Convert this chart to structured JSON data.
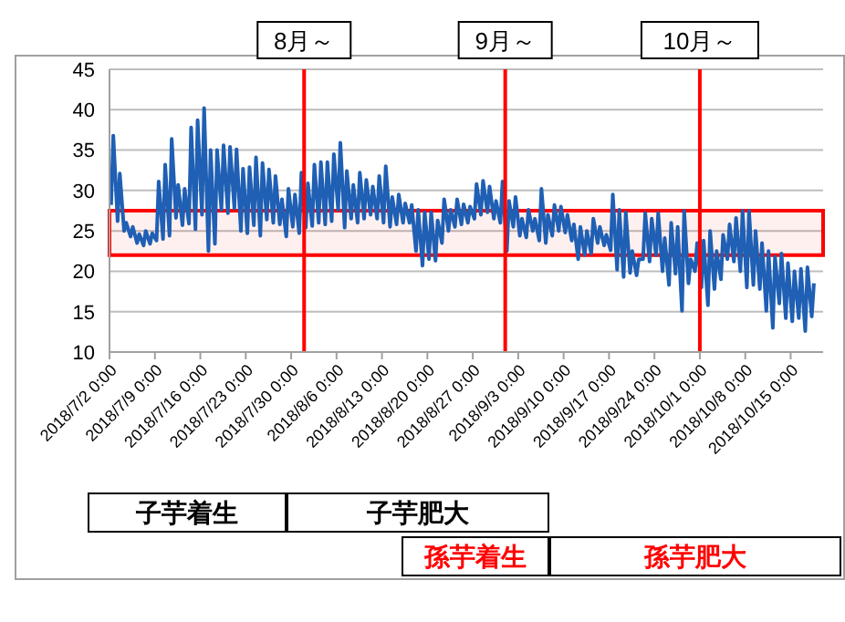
{
  "chart_data": {
    "type": "line",
    "x": [
      "2018-07-02T06:00",
      "2018-07-02T14:00",
      "2018-07-03T06:00",
      "2018-07-03T14:00",
      "2018-07-04T06:00",
      "2018-07-04T14:00",
      "2018-07-05T06:00",
      "2018-07-05T14:00",
      "2018-07-06T06:00",
      "2018-07-06T14:00",
      "2018-07-07T06:00",
      "2018-07-07T14:00",
      "2018-07-08T06:00",
      "2018-07-08T14:00",
      "2018-07-09T06:00",
      "2018-07-09T14:00",
      "2018-07-10T06:00",
      "2018-07-10T14:00",
      "2018-07-11T06:00",
      "2018-07-11T14:00",
      "2018-07-12T06:00",
      "2018-07-12T14:00",
      "2018-07-13T06:00",
      "2018-07-13T14:00",
      "2018-07-14T06:00",
      "2018-07-14T14:00",
      "2018-07-15T06:00",
      "2018-07-15T14:00",
      "2018-07-16T06:00",
      "2018-07-16T14:00",
      "2018-07-17T06:00",
      "2018-07-17T14:00",
      "2018-07-18T06:00",
      "2018-07-18T14:00",
      "2018-07-19T06:00",
      "2018-07-19T14:00",
      "2018-07-20T06:00",
      "2018-07-20T14:00",
      "2018-07-21T06:00",
      "2018-07-21T14:00",
      "2018-07-22T06:00",
      "2018-07-22T14:00",
      "2018-07-23T06:00",
      "2018-07-23T14:00",
      "2018-07-24T06:00",
      "2018-07-24T14:00",
      "2018-07-25T06:00",
      "2018-07-25T14:00",
      "2018-07-26T06:00",
      "2018-07-26T14:00",
      "2018-07-27T06:00",
      "2018-07-27T14:00",
      "2018-07-28T06:00",
      "2018-07-28T14:00",
      "2018-07-29T06:00",
      "2018-07-29T14:00",
      "2018-07-30T06:00",
      "2018-07-30T14:00",
      "2018-07-31T06:00",
      "2018-07-31T14:00",
      "2018-08-01T06:00",
      "2018-08-01T14:00",
      "2018-08-02T06:00",
      "2018-08-02T14:00",
      "2018-08-03T06:00",
      "2018-08-03T14:00",
      "2018-08-04T06:00",
      "2018-08-04T14:00",
      "2018-08-05T06:00",
      "2018-08-05T14:00",
      "2018-08-06T06:00",
      "2018-08-06T14:00",
      "2018-08-07T06:00",
      "2018-08-07T14:00",
      "2018-08-08T06:00",
      "2018-08-08T14:00",
      "2018-08-09T06:00",
      "2018-08-09T14:00",
      "2018-08-10T06:00",
      "2018-08-10T14:00",
      "2018-08-11T06:00",
      "2018-08-11T14:00",
      "2018-08-12T06:00",
      "2018-08-12T14:00",
      "2018-08-13T06:00",
      "2018-08-13T14:00",
      "2018-08-14T06:00",
      "2018-08-14T14:00",
      "2018-08-15T06:00",
      "2018-08-15T14:00",
      "2018-08-16T06:00",
      "2018-08-16T14:00",
      "2018-08-17T06:00",
      "2018-08-17T14:00",
      "2018-08-18T06:00",
      "2018-08-18T14:00",
      "2018-08-19T06:00",
      "2018-08-19T14:00",
      "2018-08-20T06:00",
      "2018-08-20T14:00",
      "2018-08-21T06:00",
      "2018-08-21T14:00",
      "2018-08-22T06:00",
      "2018-08-22T14:00",
      "2018-08-23T06:00",
      "2018-08-23T14:00",
      "2018-08-24T06:00",
      "2018-08-24T14:00",
      "2018-08-25T06:00",
      "2018-08-25T14:00",
      "2018-08-26T06:00",
      "2018-08-26T14:00",
      "2018-08-27T06:00",
      "2018-08-27T14:00",
      "2018-08-28T06:00",
      "2018-08-28T14:00",
      "2018-08-29T06:00",
      "2018-08-29T14:00",
      "2018-08-30T06:00",
      "2018-08-30T14:00",
      "2018-08-31T06:00",
      "2018-08-31T14:00",
      "2018-09-01T06:00",
      "2018-09-01T14:00",
      "2018-09-02T06:00",
      "2018-09-02T14:00",
      "2018-09-03T06:00",
      "2018-09-03T14:00",
      "2018-09-04T06:00",
      "2018-09-04T14:00",
      "2018-09-05T06:00",
      "2018-09-05T14:00",
      "2018-09-06T06:00",
      "2018-09-06T14:00",
      "2018-09-07T06:00",
      "2018-09-07T14:00",
      "2018-09-08T06:00",
      "2018-09-08T14:00",
      "2018-09-09T06:00",
      "2018-09-09T14:00",
      "2018-09-10T06:00",
      "2018-09-10T14:00",
      "2018-09-11T06:00",
      "2018-09-11T14:00",
      "2018-09-12T06:00",
      "2018-09-12T14:00",
      "2018-09-13T06:00",
      "2018-09-13T14:00",
      "2018-09-14T06:00",
      "2018-09-14T14:00",
      "2018-09-15T06:00",
      "2018-09-15T14:00",
      "2018-09-16T06:00",
      "2018-09-16T14:00",
      "2018-09-17T06:00",
      "2018-09-17T14:00",
      "2018-09-18T06:00",
      "2018-09-18T14:00",
      "2018-09-19T06:00",
      "2018-09-19T14:00",
      "2018-09-20T06:00",
      "2018-09-20T14:00",
      "2018-09-21T06:00",
      "2018-09-21T14:00",
      "2018-09-22T06:00",
      "2018-09-22T14:00",
      "2018-09-23T06:00",
      "2018-09-23T14:00",
      "2018-09-24T06:00",
      "2018-09-24T14:00",
      "2018-09-25T06:00",
      "2018-09-25T14:00",
      "2018-09-26T06:00",
      "2018-09-26T14:00",
      "2018-09-27T06:00",
      "2018-09-27T14:00",
      "2018-09-28T06:00",
      "2018-09-28T14:00",
      "2018-09-29T06:00",
      "2018-09-29T14:00",
      "2018-09-30T06:00",
      "2018-09-30T14:00",
      "2018-10-01T06:00",
      "2018-10-01T14:00",
      "2018-10-02T06:00",
      "2018-10-02T14:00",
      "2018-10-03T06:00",
      "2018-10-03T14:00",
      "2018-10-04T06:00",
      "2018-10-04T14:00",
      "2018-10-05T06:00",
      "2018-10-05T14:00",
      "2018-10-06T06:00",
      "2018-10-06T14:00",
      "2018-10-07T06:00",
      "2018-10-07T14:00",
      "2018-10-08T06:00",
      "2018-10-08T14:00",
      "2018-10-09T06:00",
      "2018-10-09T14:00",
      "2018-10-10T06:00",
      "2018-10-10T14:00",
      "2018-10-11T06:00",
      "2018-10-11T14:00",
      "2018-10-12T06:00",
      "2018-10-12T14:00",
      "2018-10-13T06:00",
      "2018-10-13T14:00",
      "2018-10-14T06:00",
      "2018-10-14T14:00",
      "2018-10-15T06:00",
      "2018-10-15T14:00",
      "2018-10-16T06:00",
      "2018-10-16T14:00",
      "2018-10-17T06:00",
      "2018-10-17T14:00",
      "2018-10-18T06:00",
      "2018-10-18T14:00"
    ],
    "series": [
      {
        "color": "#1f5fb4",
        "values": [
          28.2,
          36.8,
          26.2,
          32.1,
          25.0,
          26.0,
          24.3,
          25.5,
          23.5,
          24.6,
          23.2,
          25.0,
          23.4,
          24.7,
          23.8,
          31.1,
          24.0,
          33.2,
          24.4,
          36.4,
          26.6,
          30.7,
          25.7,
          30.2,
          25.9,
          37.8,
          25.2,
          38.7,
          27.0,
          40.2,
          22.5,
          35.0,
          23.4,
          35.0,
          27.6,
          35.6,
          27.2,
          35.4,
          27.8,
          35.1,
          25.0,
          32.7,
          24.7,
          32.9,
          25.7,
          34.1,
          24.4,
          33.4,
          26.4,
          32.6,
          26.0,
          31.8,
          25.8,
          28.9,
          24.3,
          30.2,
          25.5,
          29.5,
          24.7,
          32.2,
          25.4,
          30.9,
          25.6,
          33.2,
          26.0,
          33.5,
          25.8,
          33.5,
          26.2,
          34.5,
          27.6,
          35.9,
          25.4,
          32.4,
          26.5,
          30.7,
          26.0,
          32.2,
          26.5,
          31.3,
          27.0,
          30.5,
          26.5,
          31.8,
          26.0,
          33.0,
          25.5,
          29.2,
          25.8,
          29.5,
          26.0,
          28.4,
          26.0,
          28.2,
          22.5,
          27.6,
          20.7,
          27.3,
          21.5,
          27.3,
          21.3,
          26.3,
          23.5,
          28.9,
          25.0,
          27.6,
          25.5,
          28.9,
          25.8,
          28.3,
          26.0,
          28.0,
          26.5,
          30.8,
          27.0,
          31.2,
          27.3,
          30.5,
          26.5,
          28.7,
          26.0,
          31.1,
          22.5,
          28.7,
          25.5,
          29.2,
          24.4,
          26.5,
          24.2,
          27.6,
          25.0,
          26.5,
          23.8,
          30.2,
          23.5,
          27.0,
          24.4,
          28.2,
          25.0,
          28.0,
          24.8,
          27.0,
          23.8,
          25.8,
          21.5,
          25.5,
          22.0,
          25.0,
          22.2,
          26.5,
          23.5,
          25.5,
          23.2,
          24.5,
          22.6,
          29.5,
          20.2,
          27.6,
          19.3,
          27.3,
          19.8,
          22.5,
          19.5,
          21.5,
          21.5,
          27.2,
          21.2,
          26.5,
          22.0,
          27.2,
          20.0,
          24.1,
          18.3,
          26.0,
          19.7,
          25.5,
          15.1,
          27.5,
          18.5,
          21.5,
          20.0,
          23.5,
          18.0,
          23.8,
          15.8,
          25.0,
          17.8,
          22.5,
          19.0,
          24.5,
          21.5,
          25.8,
          21.2,
          26.6,
          20.0,
          27.5,
          18.0,
          27.5,
          18.3,
          25.0,
          17.8,
          23.5,
          15.1,
          22.5,
          13.0,
          21.8,
          16.0,
          22.2,
          14.2,
          21.0,
          13.8,
          20.0,
          14.2,
          20.3,
          12.6,
          20.5,
          14.4,
          18.5
        ]
      }
    ],
    "xlim": [
      "2018-07-02T00:00",
      "2018-10-20T00:00"
    ],
    "xticks": [
      {
        "value": "2018-07-02T00:00",
        "label": "2018/7/2 0:00"
      },
      {
        "value": "2018-07-09T00:00",
        "label": "2018/7/9 0:00"
      },
      {
        "value": "2018-07-16T00:00",
        "label": "2018/7/16 0:00"
      },
      {
        "value": "2018-07-23T00:00",
        "label": "2018/7/23 0:00"
      },
      {
        "value": "2018-07-30T00:00",
        "label": "2018/7/30 0:00"
      },
      {
        "value": "2018-08-06T00:00",
        "label": "2018/8/6 0:00"
      },
      {
        "value": "2018-08-13T00:00",
        "label": "2018/8/13 0:00"
      },
      {
        "value": "2018-08-20T00:00",
        "label": "2018/8/20 0:00"
      },
      {
        "value": "2018-08-27T00:00",
        "label": "2018/8/27 0:00"
      },
      {
        "value": "2018-09-03T00:00",
        "label": "2018/9/3 0:00"
      },
      {
        "value": "2018-09-10T00:00",
        "label": "2018/9/10 0:00"
      },
      {
        "value": "2018-09-17T00:00",
        "label": "2018/9/17 0:00"
      },
      {
        "value": "2018-09-24T00:00",
        "label": "2018/9/24 0:00"
      },
      {
        "value": "2018-10-01T00:00",
        "label": "2018/10/1 0:00"
      },
      {
        "value": "2018-10-08T00:00",
        "label": "2018/10/8 0:00"
      },
      {
        "value": "2018-10-15T00:00",
        "label": "2018/10/15 0:00"
      }
    ],
    "ylim": [
      10,
      45
    ],
    "yticks": [
      10,
      15,
      20,
      25,
      30,
      35,
      40,
      45
    ],
    "grid": "y",
    "ref_lines": [
      {
        "axis": "x",
        "value": "2018-08-01T00:00",
        "label": "8月～",
        "color": "#ff0000"
      },
      {
        "axis": "x",
        "value": "2018-09-01T00:00",
        "label": "9月～",
        "color": "#ff0000"
      },
      {
        "axis": "x",
        "value": "2018-10-01T00:00",
        "label": "10月～",
        "color": "#ff0000"
      }
    ],
    "bands": [
      {
        "axis": "y",
        "from": 22,
        "to": 27.5,
        "color": "#ff0000"
      }
    ],
    "annotations": [
      "子芋着生",
      "子芋肥大",
      "孫芋着生",
      "孫芋肥大"
    ]
  }
}
